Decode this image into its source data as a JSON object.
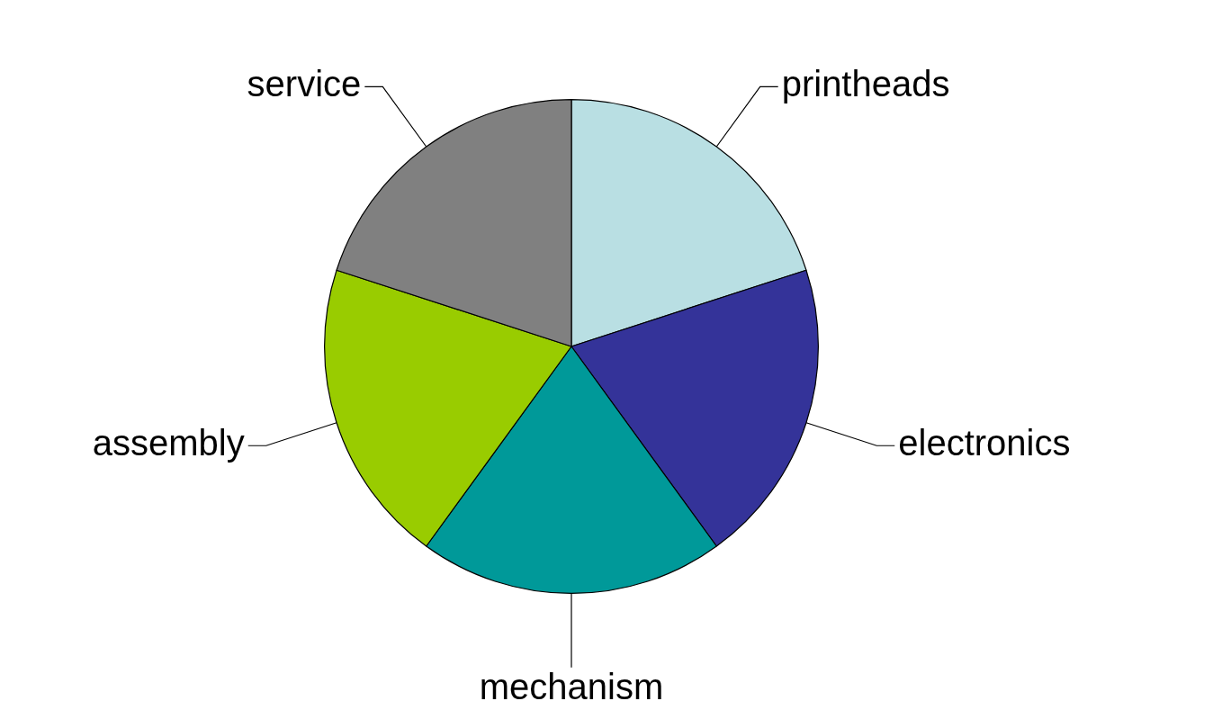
{
  "chart_data": {
    "type": "pie",
    "categories": [
      "printheads",
      "electronics",
      "mechanism",
      "assembly",
      "service"
    ],
    "values": [
      20,
      20,
      20,
      20,
      20
    ],
    "colors": [
      "#b9dfe3",
      "#343399",
      "#009999",
      "#99cc00",
      "#808080"
    ]
  }
}
